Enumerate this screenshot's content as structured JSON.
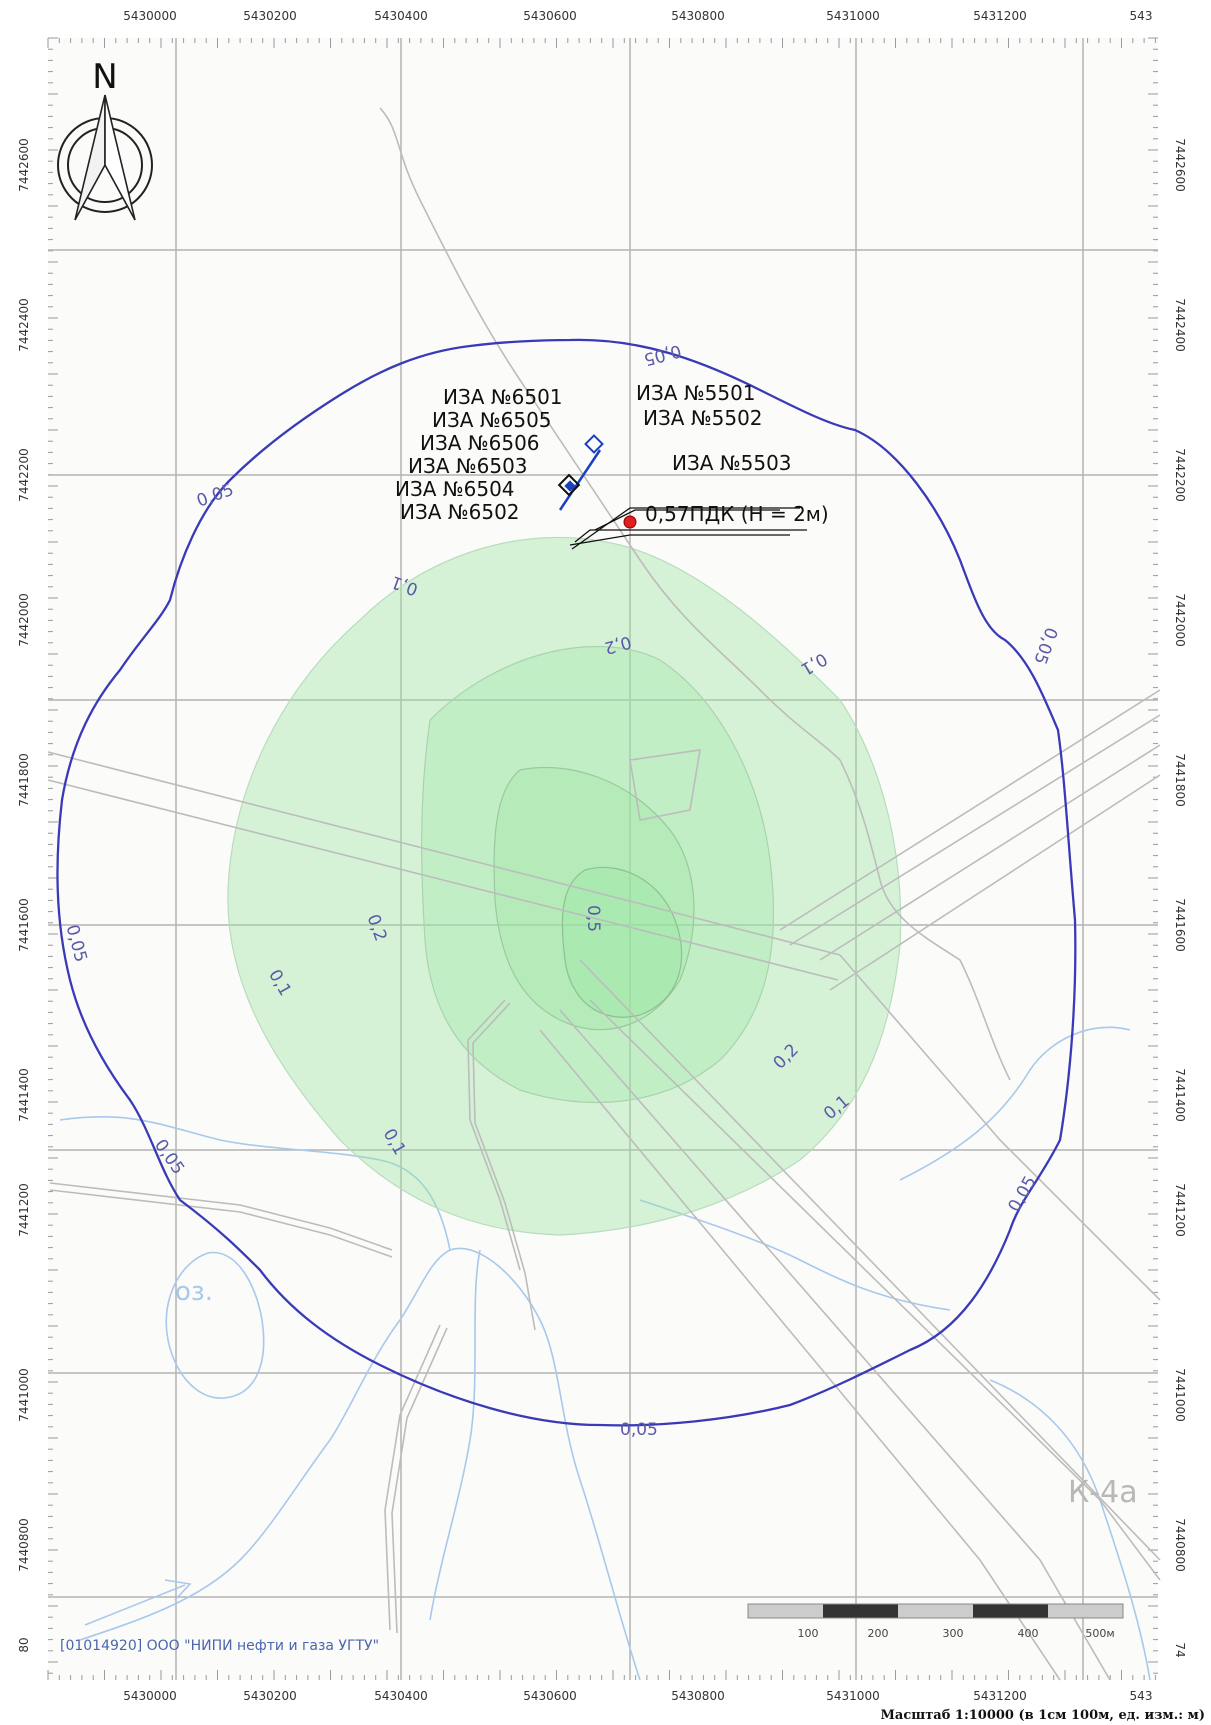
{
  "map": {
    "x_ticks": [
      "5430000",
      "5430200",
      "5430400",
      "5430600",
      "5430800",
      "5431000",
      "5431200",
      "543"
    ],
    "y_ticks": [
      "7442600",
      "7442400",
      "7442200",
      "7442000",
      "7441800",
      "7441600",
      "7441400",
      "7441200",
      "7441000",
      "7440800"
    ],
    "y_left_partial_bottom": "80",
    "y_right_partial_bottom": "74",
    "north_label": "N",
    "sources_left": [
      "ИЗА №6501",
      "ИЗА №6505",
      "ИЗА №6506",
      "ИЗА №6503",
      "ИЗА №6504",
      "ИЗА №6502"
    ],
    "sources_right": [
      "ИЗА №5501",
      "ИЗА №5502",
      "ИЗА №5503"
    ],
    "max_point_label": "0,57ПДК (Н = 2м)",
    "contour_labels": [
      {
        "id": "c005-top",
        "text": "0,05"
      },
      {
        "id": "c005-upper-left",
        "text": "0,05"
      },
      {
        "id": "c005-right",
        "text": "0,05"
      },
      {
        "id": "c005-left",
        "text": "0,05"
      },
      {
        "id": "c005-lower-left",
        "text": "0,05"
      },
      {
        "id": "c005-bottom",
        "text": "0,05"
      },
      {
        "id": "c005-lower-right",
        "text": "0,05"
      },
      {
        "id": "c01-upper-left",
        "text": "0,1"
      },
      {
        "id": "c01-upper-right",
        "text": "0,1"
      },
      {
        "id": "c01-left",
        "text": "0,1"
      },
      {
        "id": "c01-lower-left",
        "text": "0,1"
      },
      {
        "id": "c01-lower-right",
        "text": "0,1"
      },
      {
        "id": "c02-top",
        "text": "0,2"
      },
      {
        "id": "c02-left",
        "text": "0,2"
      },
      {
        "id": "c02-lower-right",
        "text": "0,2"
      },
      {
        "id": "c05-center",
        "text": "0,5"
      }
    ],
    "lake_label": "оз.",
    "area_label": "К-4а",
    "watermark": "[01014920] ООО \"НИПИ нефти и газа УГТУ\"",
    "scale_bar_labels": [
      "100",
      "200",
      "300",
      "400",
      "500м"
    ],
    "scale_caption": "Масштаб 1:10000 (в 1см 100м, ед. изм.: м)",
    "colors": {
      "contour_005": "#3a3ab8",
      "zone_fill": "#98e6a0",
      "grid": "#aaaaaa",
      "source_marker": "#1a3fc0",
      "max_point": "#e02020",
      "water": "#a8c8ec"
    }
  }
}
